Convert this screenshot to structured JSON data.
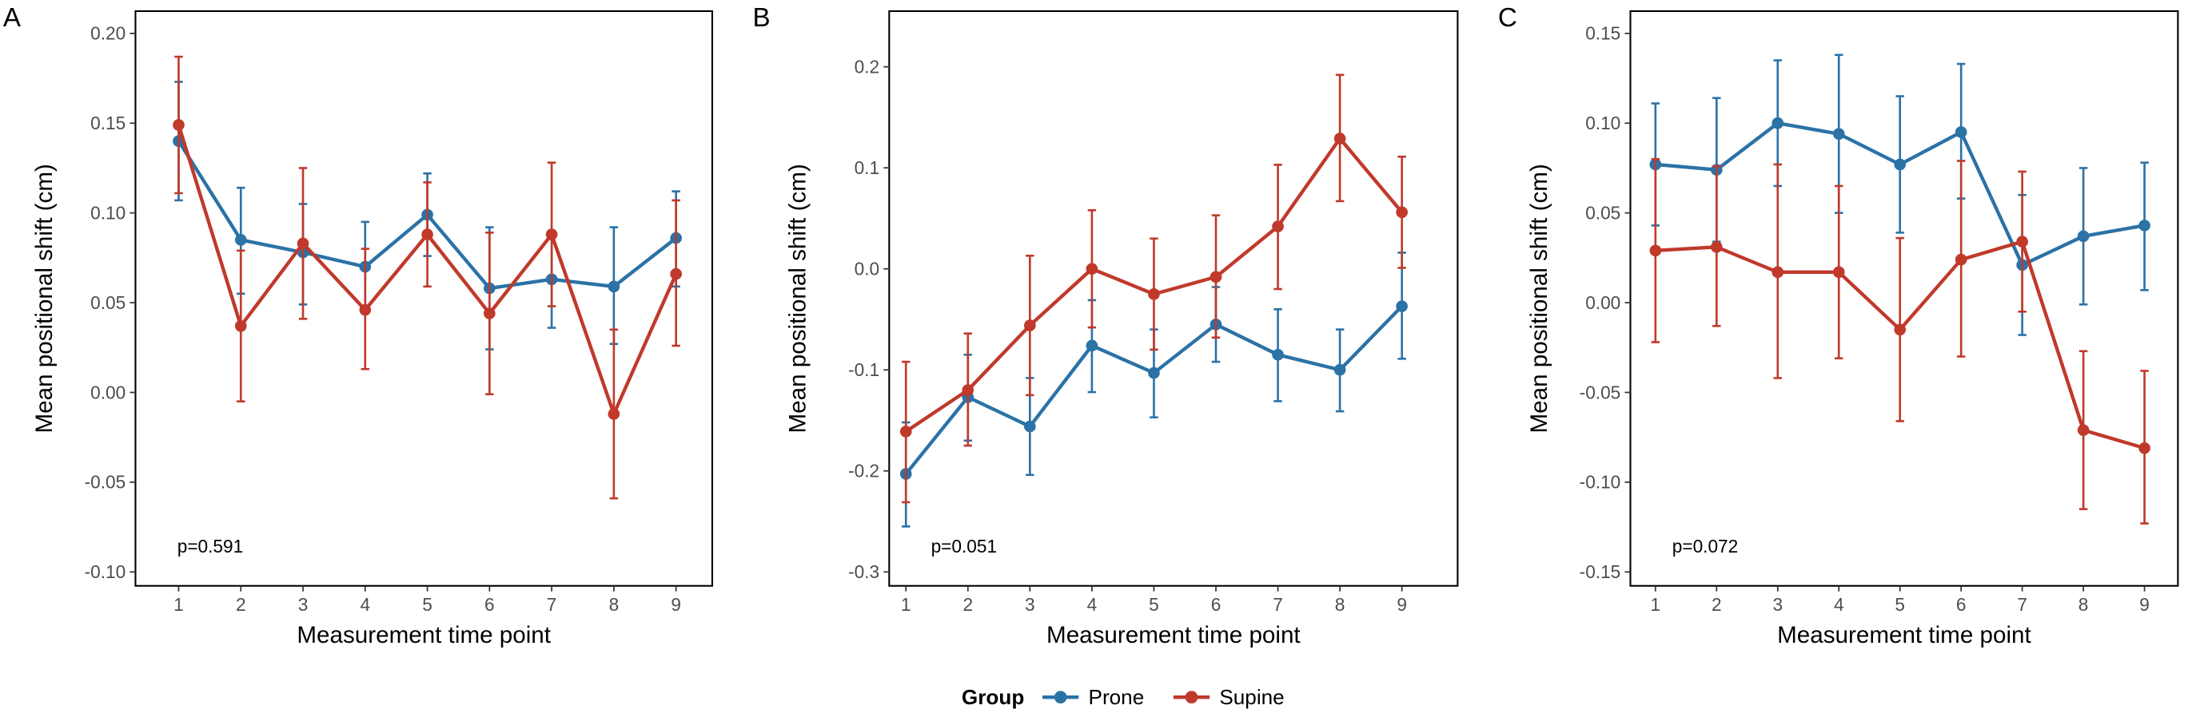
{
  "colors": {
    "Prone": "#2b72a6",
    "Supine": "#c0392b"
  },
  "legend": {
    "title": "Group",
    "entries": [
      "Prone",
      "Supine"
    ],
    "placement": "bottom"
  },
  "chart_data": [
    {
      "type": "line",
      "panel": "A",
      "annotation": "p=0.591",
      "xlabel": "Measurement time point",
      "ylabel": "Mean positional shift (cm)",
      "x": [
        1,
        2,
        3,
        4,
        5,
        6,
        7,
        8,
        9
      ],
      "ylim": [
        -0.1,
        0.2
      ],
      "yticks": [
        "-0.10",
        "-0.05",
        "0.00",
        "0.05",
        "0.10",
        "0.15",
        "0.20"
      ],
      "series": [
        {
          "name": "Prone",
          "values": [
            0.14,
            0.085,
            0.078,
            0.07,
            0.099,
            0.058,
            0.063,
            0.059,
            0.086
          ],
          "lower": [
            0.107,
            0.055,
            0.049,
            0.046,
            0.076,
            0.024,
            0.036,
            0.027,
            0.059
          ],
          "upper": [
            0.173,
            0.114,
            0.105,
            0.095,
            0.122,
            0.092,
            0.09,
            0.092,
            0.112
          ]
        },
        {
          "name": "Supine",
          "values": [
            0.149,
            0.037,
            0.083,
            0.046,
            0.088,
            0.044,
            0.088,
            -0.012,
            0.066
          ],
          "lower": [
            0.111,
            -0.005,
            0.041,
            0.013,
            0.059,
            -0.001,
            0.048,
            -0.059,
            0.026
          ],
          "upper": [
            0.187,
            0.079,
            0.125,
            0.08,
            0.117,
            0.089,
            0.128,
            0.035,
            0.107
          ]
        }
      ]
    },
    {
      "type": "line",
      "panel": "B",
      "annotation": "p=0.051",
      "xlabel": "Measurement time point",
      "ylabel": "Mean positional shift (cm)",
      "x": [
        1,
        2,
        3,
        4,
        5,
        6,
        7,
        8,
        9
      ],
      "ylim": [
        -0.3,
        0.2
      ],
      "yticks": [
        "-0.3",
        "-0.2",
        "-0.1",
        "0.0",
        "0.1",
        "0.2"
      ],
      "series": [
        {
          "name": "Prone",
          "values": [
            -0.203,
            -0.127,
            -0.156,
            -0.076,
            -0.103,
            -0.055,
            -0.085,
            -0.1,
            -0.037
          ],
          "lower": [
            -0.255,
            -0.17,
            -0.204,
            -0.122,
            -0.147,
            -0.092,
            -0.131,
            -0.141,
            -0.089
          ],
          "upper": [
            -0.152,
            -0.085,
            -0.108,
            -0.031,
            -0.06,
            -0.018,
            -0.04,
            -0.06,
            0.016
          ]
        },
        {
          "name": "Supine",
          "values": [
            -0.161,
            -0.12,
            -0.056,
            0.0,
            -0.025,
            -0.008,
            0.042,
            0.129,
            0.056
          ],
          "lower": [
            -0.231,
            -0.175,
            -0.125,
            -0.058,
            -0.08,
            -0.068,
            -0.02,
            0.067,
            0.001
          ],
          "upper": [
            -0.092,
            -0.064,
            0.013,
            0.058,
            0.03,
            0.053,
            0.103,
            0.192,
            0.111
          ]
        }
      ]
    },
    {
      "type": "line",
      "panel": "C",
      "annotation": "p=0.072",
      "xlabel": "Measurement time point",
      "ylabel": "Mean positional shift (cm)",
      "x": [
        1,
        2,
        3,
        4,
        5,
        6,
        7,
        8,
        9
      ],
      "ylim": [
        -0.15,
        0.15
      ],
      "yticks": [
        "-0.15",
        "-0.10",
        "-0.05",
        "0.00",
        "0.05",
        "0.10",
        "0.15"
      ],
      "series": [
        {
          "name": "Prone",
          "values": [
            0.077,
            0.074,
            0.1,
            0.094,
            0.077,
            0.095,
            0.021,
            0.037,
            0.043
          ],
          "lower": [
            0.043,
            0.034,
            0.065,
            0.05,
            0.039,
            0.058,
            -0.018,
            -0.001,
            0.007
          ],
          "upper": [
            0.111,
            0.114,
            0.135,
            0.138,
            0.115,
            0.133,
            0.06,
            0.075,
            0.078
          ]
        },
        {
          "name": "Supine",
          "values": [
            0.029,
            0.031,
            0.017,
            0.017,
            -0.015,
            0.024,
            0.034,
            -0.071,
            -0.081
          ],
          "lower": [
            -0.022,
            -0.013,
            -0.042,
            -0.031,
            -0.066,
            -0.03,
            -0.005,
            -0.115,
            -0.123
          ],
          "upper": [
            0.08,
            0.076,
            0.077,
            0.065,
            0.036,
            0.079,
            0.073,
            -0.027,
            -0.038
          ]
        }
      ]
    }
  ]
}
